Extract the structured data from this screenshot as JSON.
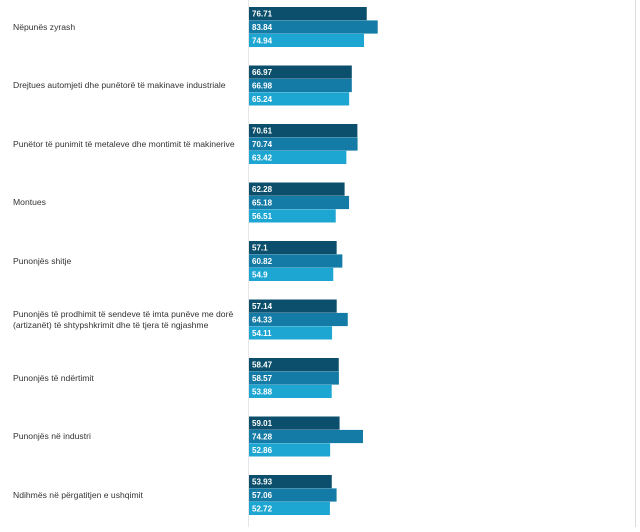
{
  "chart_data": {
    "type": "bar",
    "orientation": "horizontal",
    "categories": [
      "Nëpunës zyrash",
      "Drejtues automjeti dhe punëtorë të makinave industriale",
      "Punëtor të punimit të metaleve dhe montimit të makinerive",
      "Montues",
      "Punonjës shitje",
      "Punonjës të prodhimit të sendeve të imta punëve me dorë (artizanët) të shtypshkrimit dhe të tjera të ngjashme",
      "Punonjës të ndërtimit",
      "Punonjës në industri",
      "Ndihmës në përgatitjen e ushqimit"
    ],
    "series": [
      {
        "color": "#0b4f6c",
        "values": [
          76.71,
          66.97,
          70.61,
          62.28,
          57.1,
          57.14,
          58.47,
          59.01,
          53.93
        ],
        "labels": [
          "76.71",
          "66.97",
          "70.61",
          "62.28",
          "57.1",
          "57.14",
          "58.47",
          "59.01",
          "53.93"
        ]
      },
      {
        "color": "#137ba5",
        "values": [
          83.84,
          66.98,
          70.74,
          65.18,
          60.82,
          64.33,
          58.57,
          74.28,
          57.06
        ],
        "labels": [
          "83.84",
          "66.98",
          "70.74",
          "65.18",
          "60.82",
          "64.33",
          "58.57",
          "74.28",
          "57.06"
        ]
      },
      {
        "color": "#1ea6d2",
        "values": [
          74.94,
          65.24,
          63.42,
          56.51,
          54.9,
          54.11,
          53.88,
          52.86,
          52.72
        ],
        "labels": [
          "74.94",
          "65.24",
          "63.42",
          "56.51",
          "54.9",
          "54.11",
          "53.88",
          "52.86",
          "52.72"
        ]
      }
    ],
    "xlim": [
      0,
      100
    ],
    "grid": false,
    "legend": "none",
    "data_labels": "inside-start"
  }
}
